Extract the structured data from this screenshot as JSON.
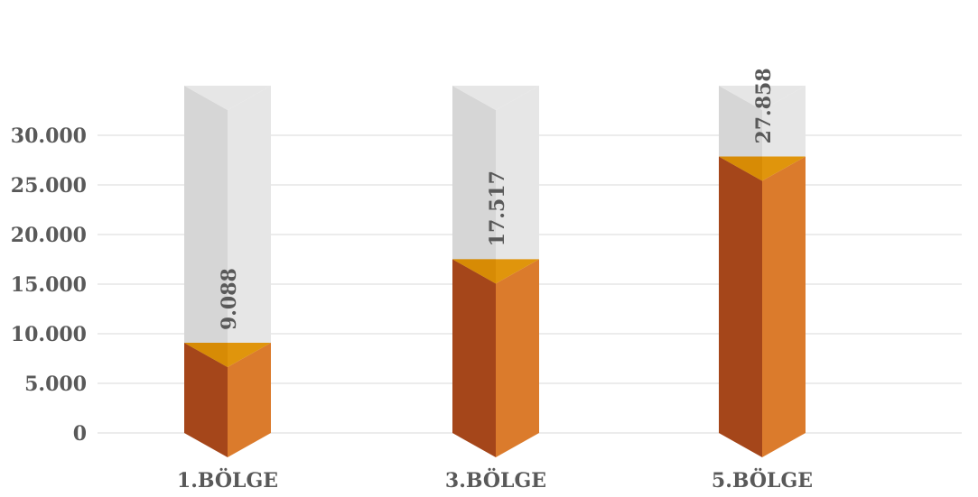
{
  "chart_data": {
    "type": "bar",
    "style": "3d-column",
    "categories": [
      "1.BÖLGE",
      "3.BÖLGE",
      "5.BÖLGE"
    ],
    "values": [
      9088,
      17517,
      27858
    ],
    "value_labels": [
      "9.088",
      "17.517",
      "27.858"
    ],
    "y_ticks": [
      0,
      5000,
      10000,
      15000,
      20000,
      25000,
      30000
    ],
    "y_tick_labels": [
      "0",
      "5.000",
      "10.000",
      "15.000",
      "20.000",
      "25.000",
      "30.000"
    ],
    "ylim": [
      0,
      30000
    ],
    "grid": true,
    "legend": "none",
    "colors": {
      "bar_left": "#a5461a",
      "bar_right": "#db7b2c",
      "bar_top": "#e0950c",
      "bar_top_dark": "#cf8300",
      "ghost_left": "#d6d6d6",
      "ghost_right": "#e6e6e6",
      "grid": "#d9d9d9",
      "text": "#595959"
    }
  }
}
